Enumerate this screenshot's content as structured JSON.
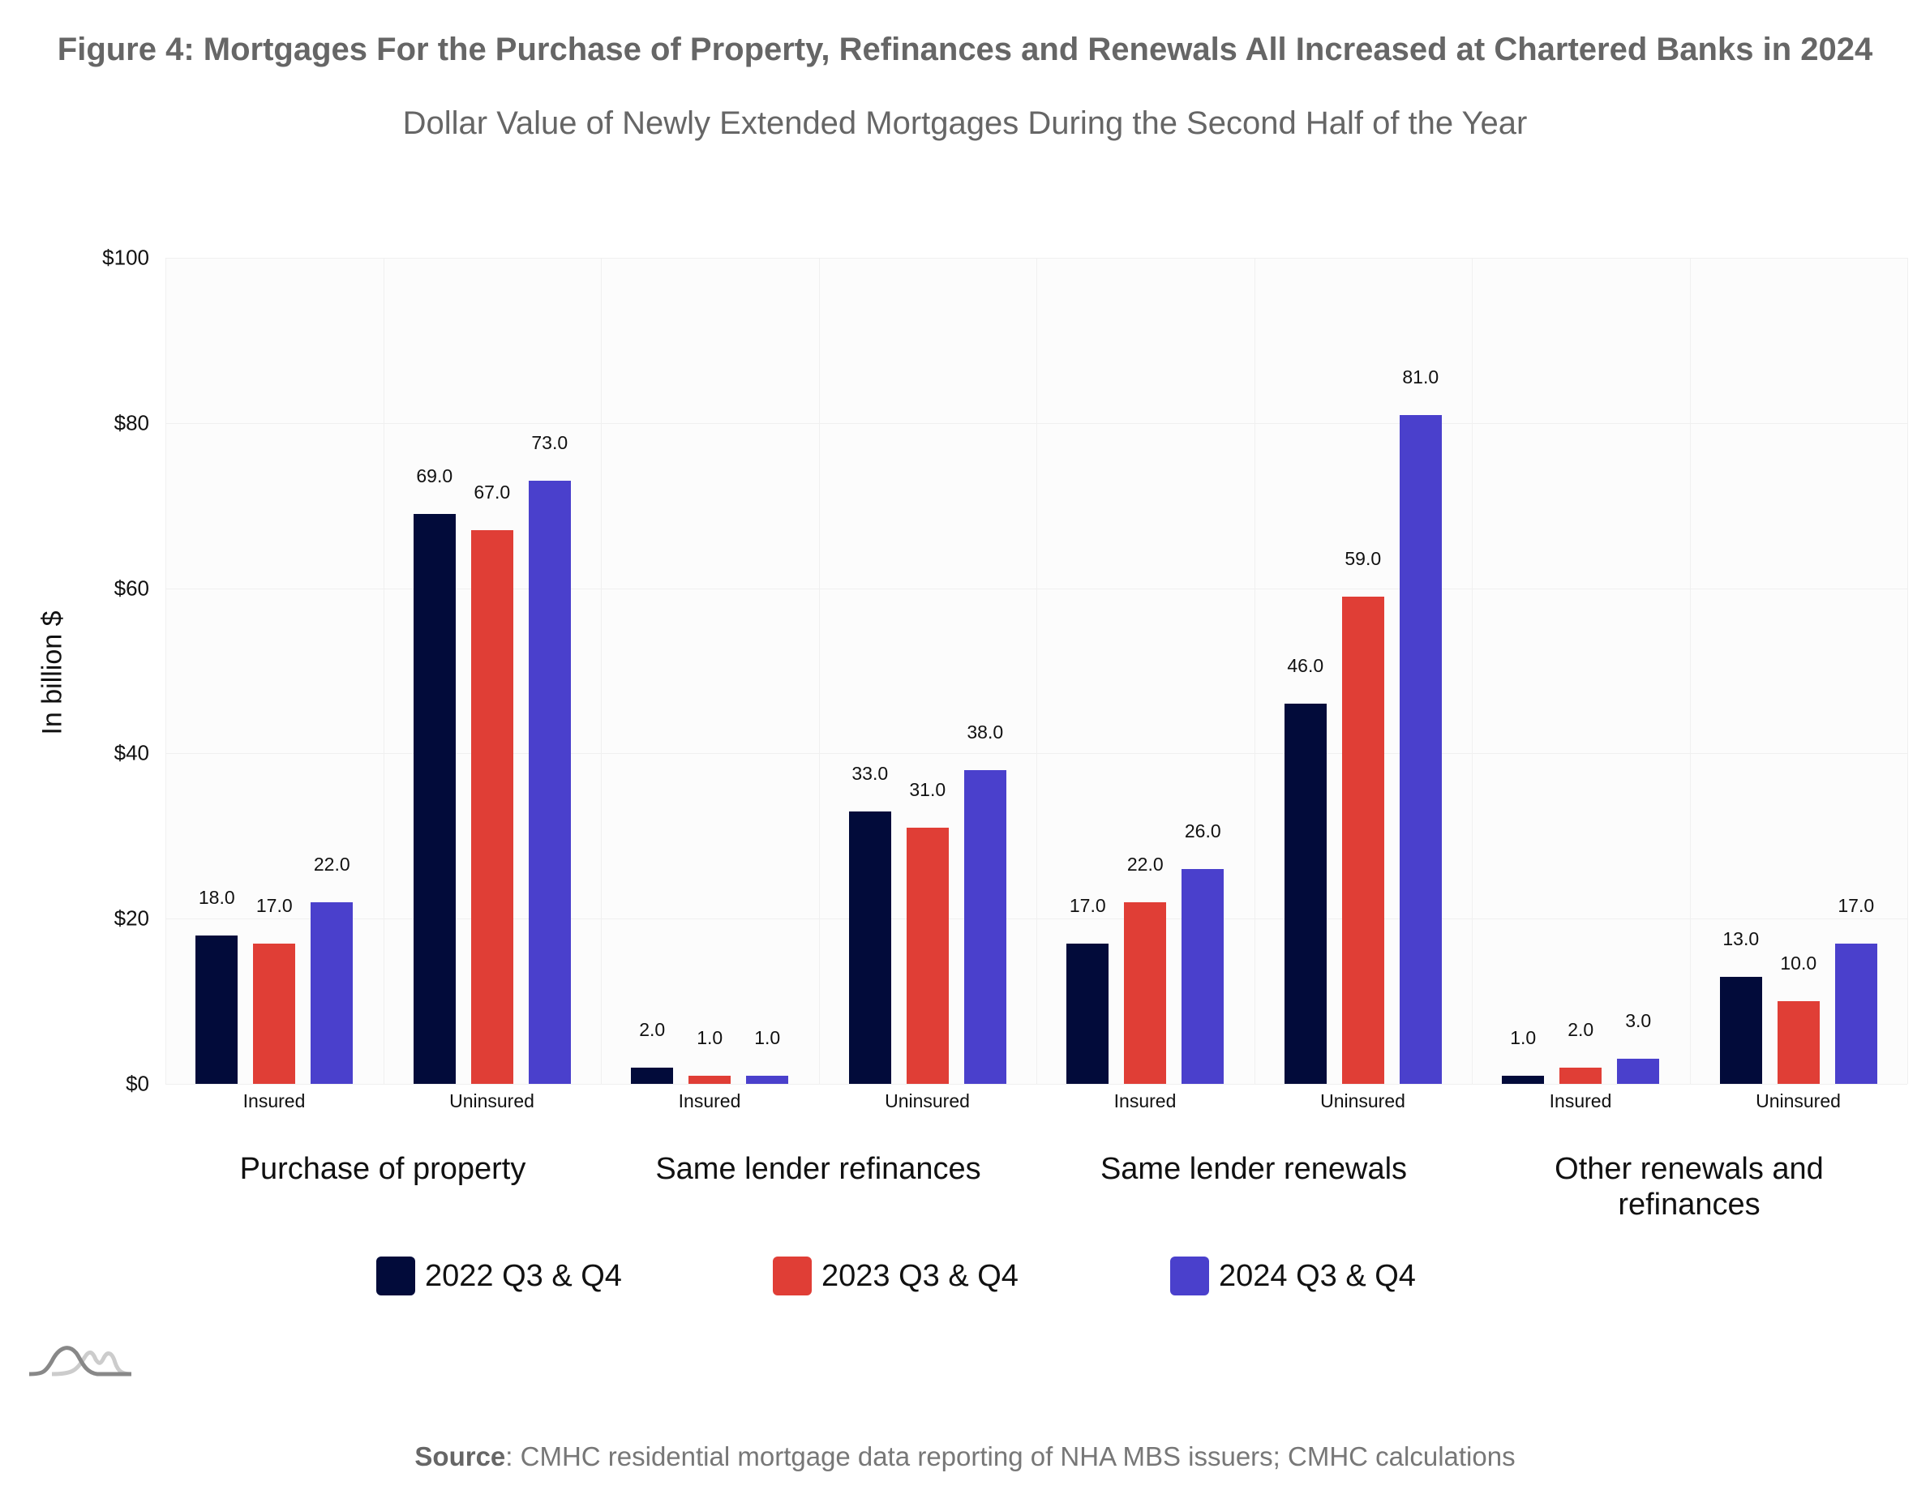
{
  "title": "Figure 4: Mortgages For the Purchase of Property, Refinances and Renewals All Increased at Chartered Banks in 2024",
  "subtitle": "Dollar Value of Newly Extended Mortgages During the Second Half of the Year",
  "source_label": "Source",
  "source_text": ": CMHC residential mortgage data reporting of NHA MBS issuers; CMHC calculations",
  "chart_data": {
    "type": "bar",
    "title": "Figure 4: Mortgages For the Purchase of Property, Refinances and Renewals All Increased at Chartered Banks in 2024",
    "ylabel": "In billion $",
    "xlabel": "",
    "ylim": [
      0,
      100
    ],
    "yticks": [
      "$0",
      "$20",
      "$40",
      "$60",
      "$80",
      "$100"
    ],
    "ytick_values": [
      0,
      20,
      40,
      60,
      80,
      100
    ],
    "groups": [
      "Purchase of property",
      "Same lender refinances",
      "Same lender renewals",
      "Other renewals and refinances"
    ],
    "categories": [
      "Insured",
      "Uninsured",
      "Insured",
      "Uninsured",
      "Insured",
      "Uninsured",
      "Insured",
      "Uninsured"
    ],
    "series": [
      {
        "name": "2022 Q3 & Q4",
        "color": "#020b3a",
        "values": [
          18,
          69,
          2,
          33,
          17,
          46,
          1,
          13
        ]
      },
      {
        "name": "2023 Q3 & Q4",
        "color": "#e03e36",
        "values": [
          17,
          67,
          1,
          31,
          22,
          59,
          2,
          10
        ]
      },
      {
        "name": "2024 Q3 & Q4",
        "color": "#4a40cc",
        "values": [
          22,
          73,
          1,
          38,
          26,
          81,
          3,
          17
        ]
      }
    ],
    "grid": true,
    "legend": "bottom"
  }
}
